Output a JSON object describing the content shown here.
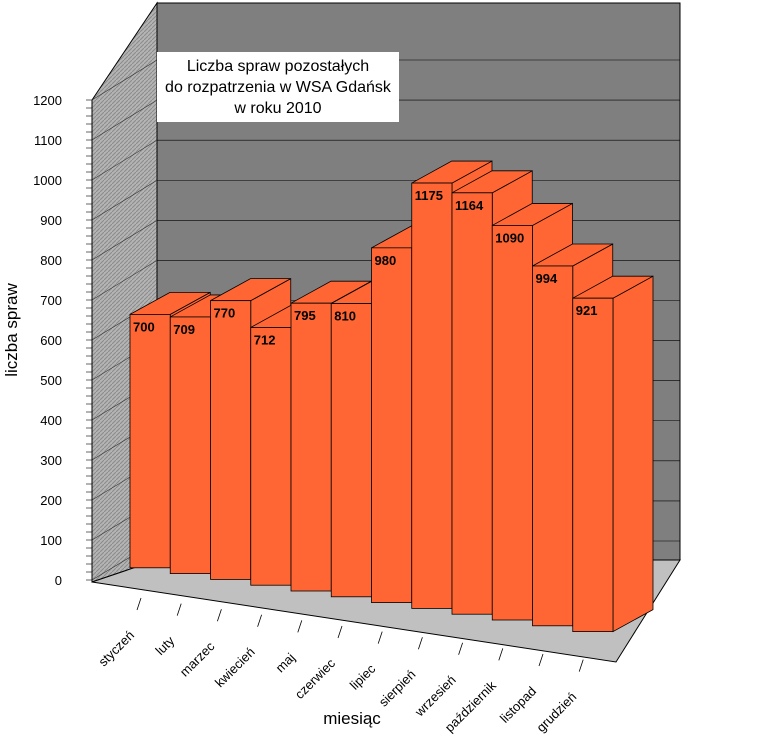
{
  "chart_data": {
    "type": "bar",
    "title_lines": [
      "Liczba spraw pozostałych",
      "do rozpatrzenia w  WSA Gdańsk",
      "w roku 2010"
    ],
    "xlabel": "miesiąc",
    "ylabel": "liczba spraw",
    "ylim": [
      0,
      1200
    ],
    "yticks": [
      "0",
      "100",
      "200",
      "300",
      "400",
      "500",
      "600",
      "700",
      "800",
      "900",
      "1000",
      "1100",
      "1200"
    ],
    "categories": [
      "styczeń",
      "luty",
      "marzec",
      "kwiecień",
      "maj",
      "czerwiec",
      "lipiec",
      "sierpień",
      "wrzesień",
      "październik",
      "listopad",
      "grudzień"
    ],
    "values": [
      700,
      709,
      770,
      712,
      795,
      810,
      980,
      1175,
      1164,
      1090,
      994,
      921
    ],
    "grid": true,
    "style": "3d",
    "colors": {
      "bar_front": "#ff6633",
      "bar_top": "#ff6633",
      "bar_side": "#ff6633",
      "bar_edge": "#000000",
      "back_wall": "#7f7f7f",
      "left_wall": "#b0b0b0",
      "floor": "#c0c0c0",
      "grid": "#000000"
    }
  }
}
